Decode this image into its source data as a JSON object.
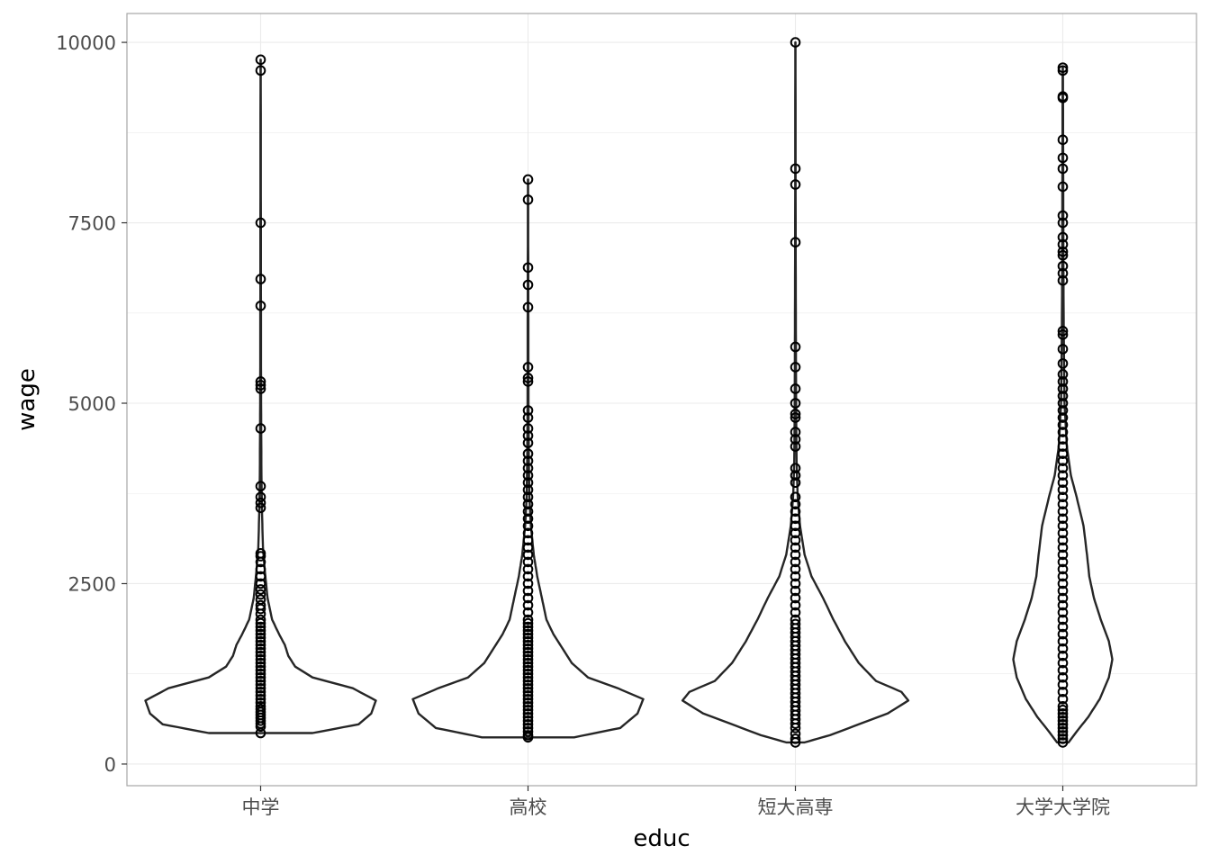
{
  "chart_data": {
    "type": "violin",
    "xlabel": "educ",
    "ylabel": "wage",
    "categories": [
      "中学",
      "高校",
      "短大高専",
      "大学大学院"
    ],
    "ylim": [
      -300,
      10400
    ],
    "yticks": [
      0,
      2500,
      5000,
      7500,
      10000
    ],
    "grid": true,
    "colors": {
      "outline": "#262626",
      "point": "#000000",
      "grid": "#ebebeb",
      "panel_border": "#a6a6a6",
      "tick_text": "#4d4d4d"
    },
    "series": [
      {
        "category": "中学",
        "min": 430,
        "max": 9760,
        "density": [
          [
            430,
            0.45
          ],
          [
            550,
            0.85
          ],
          [
            700,
            0.96
          ],
          [
            880,
            1.0
          ],
          [
            1050,
            0.8
          ],
          [
            1200,
            0.45
          ],
          [
            1350,
            0.3
          ],
          [
            1500,
            0.24
          ],
          [
            1650,
            0.21
          ],
          [
            1800,
            0.16
          ],
          [
            2000,
            0.1
          ],
          [
            2300,
            0.06
          ],
          [
            2700,
            0.035
          ],
          [
            3000,
            0.02
          ],
          [
            3500,
            0.012
          ],
          [
            4000,
            0.007
          ],
          [
            5000,
            0.004
          ],
          [
            6000,
            0.003
          ],
          [
            7500,
            0.002
          ],
          [
            9760,
            0.001
          ]
        ],
        "points": [
          430,
          520,
          560,
          600,
          640,
          680,
          720,
          760,
          800,
          850,
          900,
          950,
          1000,
          1050,
          1100,
          1150,
          1200,
          1250,
          1300,
          1350,
          1400,
          1450,
          1500,
          1550,
          1600,
          1650,
          1700,
          1750,
          1800,
          1850,
          1900,
          1950,
          2000,
          2080,
          2150,
          2200,
          2280,
          2350,
          2420,
          2500,
          2600,
          2700,
          2800,
          2880,
          2920,
          3550,
          3620,
          3700,
          3850,
          4650,
          5200,
          5250,
          5300,
          6350,
          6720,
          7500,
          9610,
          9760
        ]
      },
      {
        "category": "高校",
        "min": 370,
        "max": 8100,
        "density": [
          [
            370,
            0.4
          ],
          [
            500,
            0.8
          ],
          [
            700,
            0.95
          ],
          [
            900,
            1.0
          ],
          [
            1050,
            0.78
          ],
          [
            1200,
            0.52
          ],
          [
            1400,
            0.38
          ],
          [
            1600,
            0.3
          ],
          [
            1800,
            0.22
          ],
          [
            2000,
            0.16
          ],
          [
            2300,
            0.12
          ],
          [
            2600,
            0.08
          ],
          [
            2900,
            0.05
          ],
          [
            3300,
            0.025
          ],
          [
            3700,
            0.012
          ],
          [
            4200,
            0.007
          ],
          [
            5000,
            0.004
          ],
          [
            6000,
            0.003
          ],
          [
            7000,
            0.002
          ],
          [
            8100,
            0.001
          ]
        ],
        "points": [
          370,
          400,
          450,
          500,
          550,
          600,
          650,
          700,
          750,
          800,
          850,
          900,
          950,
          1000,
          1050,
          1100,
          1150,
          1200,
          1250,
          1300,
          1350,
          1400,
          1450,
          1500,
          1550,
          1600,
          1650,
          1700,
          1750,
          1800,
          1850,
          1900,
          1950,
          2000,
          2100,
          2200,
          2300,
          2400,
          2500,
          2600,
          2700,
          2800,
          2900,
          3000,
          3100,
          3200,
          3300,
          3400,
          3500,
          3600,
          3700,
          3800,
          3900,
          4000,
          4100,
          4200,
          4300,
          4450,
          4550,
          4650,
          4800,
          4900,
          5300,
          5350,
          5500,
          6330,
          6640,
          6880,
          7820,
          8100
        ]
      },
      {
        "category": "短大高専",
        "min": 300,
        "max": 10000,
        "density": [
          [
            300,
            0.08
          ],
          [
            400,
            0.3
          ],
          [
            550,
            0.55
          ],
          [
            700,
            0.8
          ],
          [
            880,
            0.98
          ],
          [
            1000,
            0.92
          ],
          [
            1150,
            0.7
          ],
          [
            1400,
            0.55
          ],
          [
            1700,
            0.43
          ],
          [
            2000,
            0.33
          ],
          [
            2300,
            0.24
          ],
          [
            2600,
            0.14
          ],
          [
            2900,
            0.08
          ],
          [
            3300,
            0.04
          ],
          [
            3700,
            0.02
          ],
          [
            4200,
            0.01
          ],
          [
            5000,
            0.006
          ],
          [
            6000,
            0.004
          ],
          [
            7500,
            0.002
          ],
          [
            10000,
            0.001
          ]
        ],
        "points": [
          300,
          350,
          420,
          500,
          560,
          620,
          680,
          740,
          800,
          860,
          920,
          980,
          1040,
          1100,
          1160,
          1220,
          1280,
          1340,
          1400,
          1460,
          1520,
          1580,
          1640,
          1700,
          1760,
          1820,
          1880,
          1940,
          2000,
          2100,
          2200,
          2300,
          2400,
          2500,
          2600,
          2700,
          2800,
          2900,
          3000,
          3100,
          3200,
          3300,
          3400,
          3500,
          3600,
          3700,
          3900,
          4000,
          4100,
          4400,
          4500,
          4600,
          4800,
          4850,
          5000,
          5200,
          5500,
          5780,
          7230,
          8030,
          8250,
          10000
        ]
      },
      {
        "category": "大学大学院",
        "min": 300,
        "max": 9650,
        "density": [
          [
            300,
            0.05
          ],
          [
            450,
            0.12
          ],
          [
            650,
            0.22
          ],
          [
            900,
            0.32
          ],
          [
            1200,
            0.4
          ],
          [
            1450,
            0.43
          ],
          [
            1700,
            0.4
          ],
          [
            2000,
            0.33
          ],
          [
            2300,
            0.27
          ],
          [
            2600,
            0.23
          ],
          [
            2900,
            0.21
          ],
          [
            3300,
            0.18
          ],
          [
            3700,
            0.12
          ],
          [
            4000,
            0.07
          ],
          [
            4400,
            0.035
          ],
          [
            5000,
            0.015
          ],
          [
            6000,
            0.008
          ],
          [
            7000,
            0.005
          ],
          [
            8500,
            0.003
          ],
          [
            9650,
            0.001
          ]
        ],
        "points": [
          300,
          350,
          400,
          450,
          500,
          550,
          600,
          650,
          700,
          750,
          800,
          900,
          1000,
          1100,
          1200,
          1300,
          1400,
          1500,
          1600,
          1700,
          1800,
          1900,
          2000,
          2100,
          2200,
          2300,
          2400,
          2500,
          2600,
          2700,
          2800,
          2900,
          3000,
          3100,
          3200,
          3300,
          3400,
          3500,
          3600,
          3700,
          3800,
          3900,
          4000,
          4100,
          4200,
          4300,
          4400,
          4500,
          4600,
          4700,
          4800,
          4900,
          5000,
          5100,
          5200,
          5300,
          5400,
          5550,
          5750,
          5950,
          6000,
          6700,
          6800,
          6900,
          7050,
          7100,
          7200,
          7300,
          7500,
          7600,
          8000,
          8250,
          8400,
          8650,
          9230,
          9250,
          9610,
          9650
        ]
      }
    ]
  }
}
